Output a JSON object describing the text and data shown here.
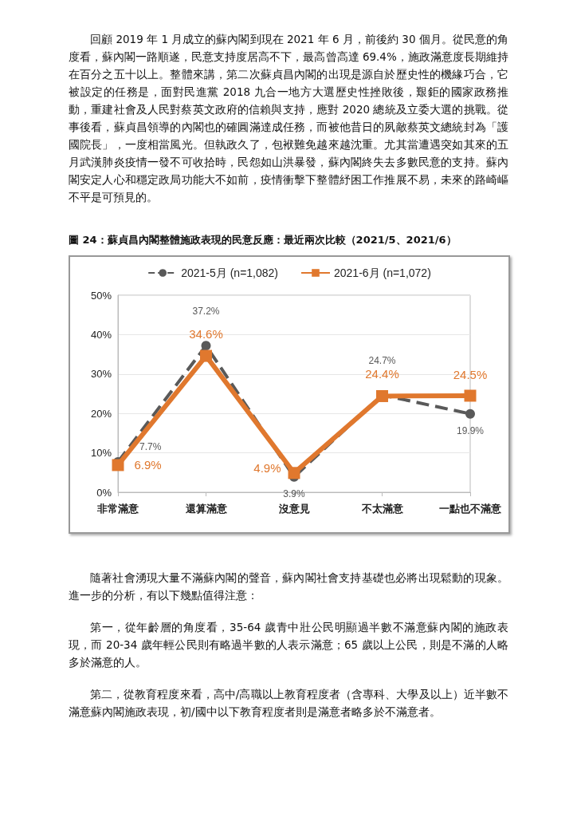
{
  "chart_data": {
    "type": "line",
    "title": "圖 24：蘇貞昌內閣整體施政表現的民意反應：最近兩次比較（2021/5、2021/6）",
    "categories": [
      "非常滿意",
      "還算滿意",
      "沒意見",
      "不太滿意",
      "一點也不滿意"
    ],
    "series": [
      {
        "name": "2021-5月 (n=1,082)",
        "color": "#595959",
        "marker": "circle",
        "line_style": "dashed",
        "values": [
          7.7,
          37.2,
          3.9,
          24.7,
          19.9
        ],
        "value_labels": [
          "7.7%",
          "37.2%",
          "3.9%",
          "24.7%",
          "19.9%"
        ]
      },
      {
        "name": "2021-6月 (n=1,072)",
        "color": "#e0782e",
        "marker": "square",
        "line_style": "solid",
        "values": [
          6.9,
          34.6,
          4.9,
          24.4,
          24.5
        ],
        "value_labels": [
          "6.9%",
          "34.6%",
          "4.9%",
          "24.4%",
          "24.5%"
        ]
      }
    ],
    "ylim": [
      0,
      50
    ],
    "yticks": [
      {
        "value": 0,
        "label": "0%"
      },
      {
        "value": 10,
        "label": "10%"
      },
      {
        "value": 20,
        "label": "20%"
      },
      {
        "value": 30,
        "label": "30%"
      },
      {
        "value": 40,
        "label": "40%"
      },
      {
        "value": 50,
        "label": "50%"
      }
    ],
    "grid": "y",
    "legend": "top",
    "annotations": [
      "回顧 2019 年 1 月成立的蘇內閣到現在 2021 年 6 月，前後約 30 個月。從民意的角度看，蘇內閣一路順遂，民意支持度居高不下，最高曾高達 69.4%，施政滿意度長期維持在百分之五十以上。整體來講，第二次蘇貞昌內閣的出現是源自於歷史性的機緣巧合，它被設定的任務是，面對民進黨 2018 九合一地方大選歷史性挫敗後，艱鉅的國家政務推動，重建社會及人民對蔡英文政府的信賴與支持，應對 2020 總統及立委大選的挑戰。從事後看，蘇貞昌領導的內閣也的確圓滿達成任務，而被他昔日的夙敵蔡英文總統封為「護國院長」，一度相當風光。但執政久了，包袱難免越來越沈重。尤其當遭遇突如其來的五月武漢肺炎疫情一發不可收拾時，民怨如山洪暴發，蘇內閣終失去多數民意的支持。蘇內閣安定人心和穩定政局功能大不如前，疫情衝擊下整體紓困工作推展不易，未來的路崎嶇不平是可預見的。",
      "隨著社會湧現大量不滿蘇內閣的聲音，蘇內閣社會支持基礎也必將出現鬆動的現象。進一步的分析，有以下幾點值得注意：",
      "第一，從年齡層的角度看，35-64 歲青中壯公民明顯過半數不滿意蘇內閣的施政表現，而 20-34 歲年輕公民則有略過半數的人表示滿意；65 歲以上公民，則是不滿的人略多於滿意的人。",
      "第二，從教育程度來看，高中/高職以上教育程度者（含專科、大學及以上）近半數不滿意蘇內閣施政表現，初/國中以下教育程度者則是滿意者略多於不滿意者。"
    ]
  }
}
